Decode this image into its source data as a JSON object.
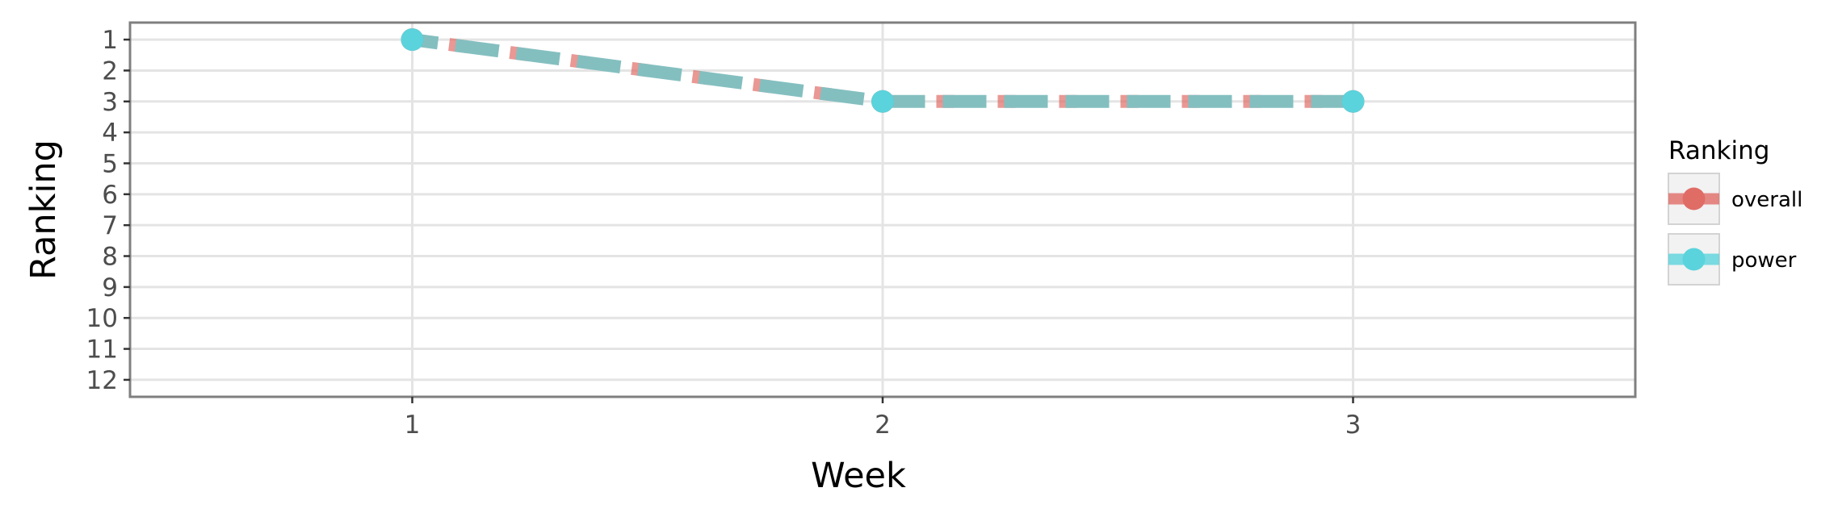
{
  "chart_data": {
    "type": "line",
    "xlabel": "Week",
    "ylabel": "Ranking",
    "x": [
      1,
      2,
      3
    ],
    "xlim": [
      0.4,
      3.6
    ],
    "ylim": [
      12.55,
      0.45
    ],
    "y_reversed": true,
    "x_ticks": [
      "1",
      "2",
      "3"
    ],
    "y_ticks": [
      "1",
      "2",
      "3",
      "4",
      "5",
      "6",
      "7",
      "8",
      "9",
      "10",
      "11",
      "12"
    ],
    "grid": true,
    "legend": {
      "title": "Ranking",
      "position": "right"
    },
    "series": [
      {
        "name": "overall",
        "values": [
          1,
          3,
          3
        ],
        "color": "#e06c66",
        "line_style": "dashed"
      },
      {
        "name": "power",
        "values": [
          1,
          3,
          3
        ],
        "color": "#5ad3dc",
        "line_style": "solid"
      }
    ],
    "overlap_color": "#84bfc0",
    "grid_color": "#e4e4e4",
    "panel_border_color": "#7f7f7f"
  }
}
